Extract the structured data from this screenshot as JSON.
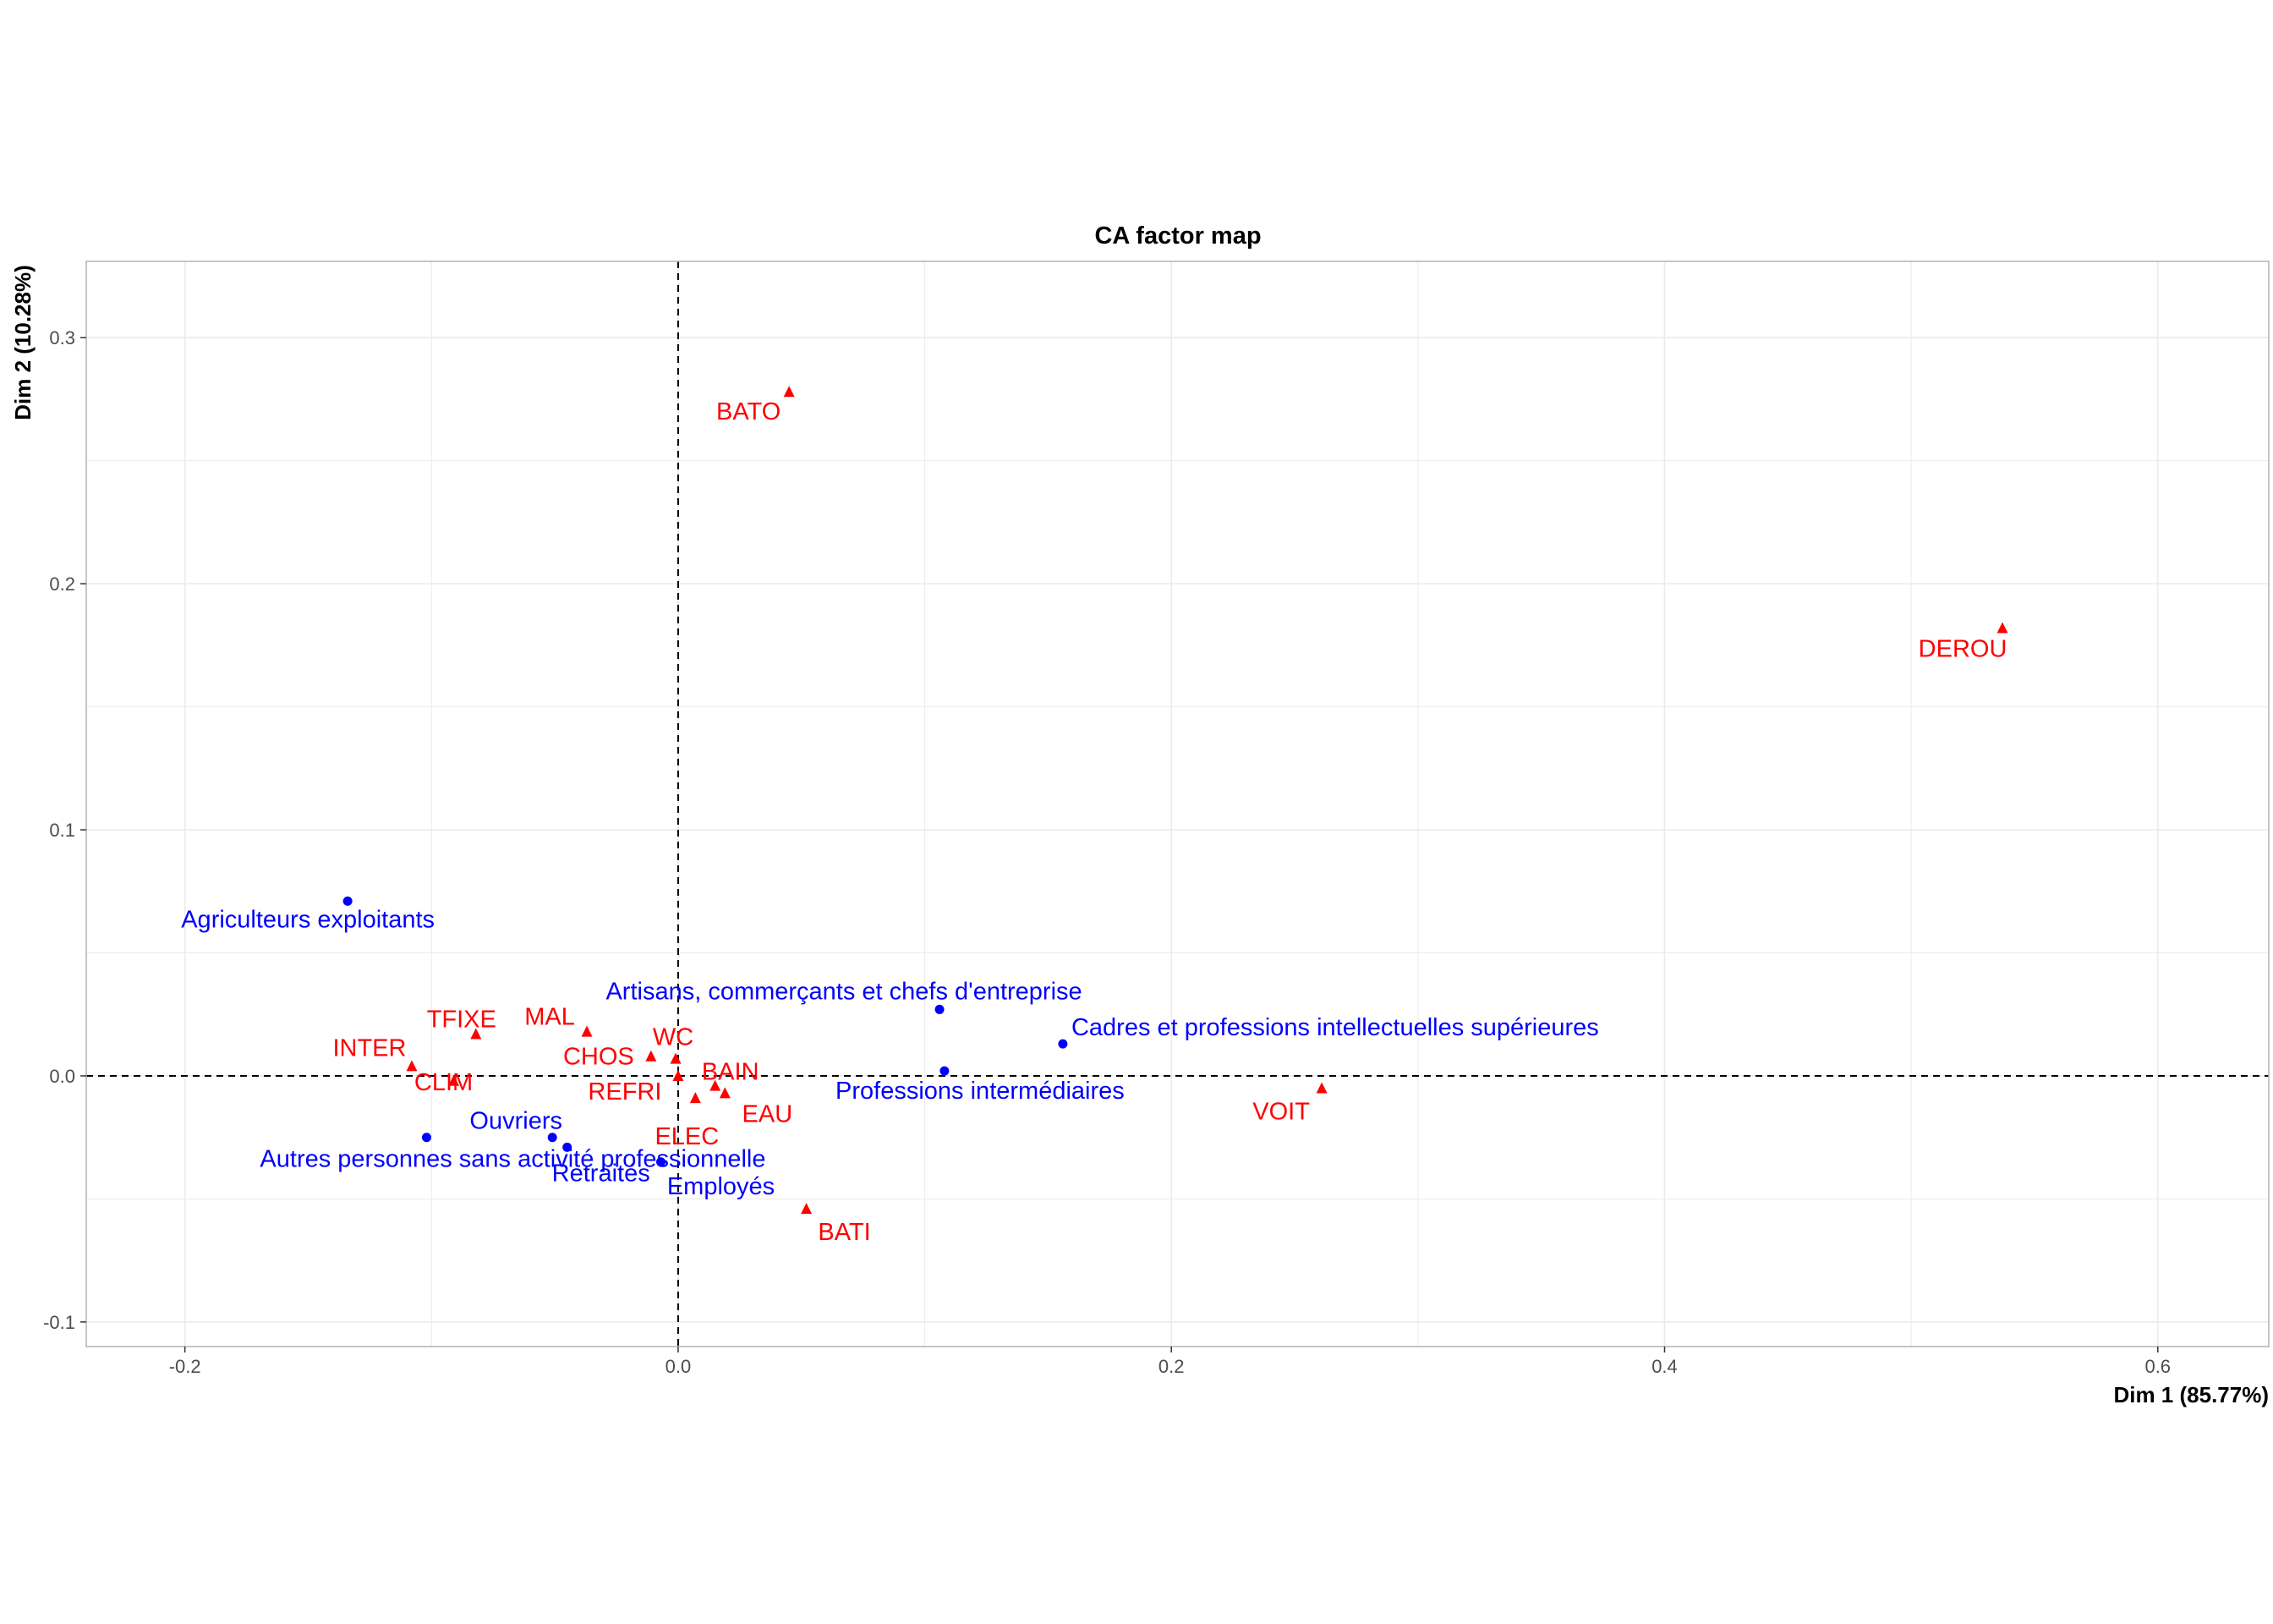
{
  "chart_data": {
    "type": "scatter",
    "title": "CA factor map",
    "xlabel": "Dim 1 (85.77%)",
    "ylabel": "Dim 2 (10.28%)",
    "xlim": [
      -0.24,
      0.645
    ],
    "ylim": [
      -0.11,
      0.331
    ],
    "x_ticks": [
      -0.2,
      0.0,
      0.2,
      0.4,
      0.6
    ],
    "x_tick_labels": [
      "-0.2",
      "0.0",
      "0.2",
      "0.4",
      "0.6"
    ],
    "y_ticks": [
      -0.1,
      0.0,
      0.1,
      0.2,
      0.3
    ],
    "y_tick_labels": [
      "-0.1",
      "0.0",
      "0.1",
      "0.2",
      "0.3"
    ],
    "grid": true,
    "reference_lines": {
      "x": 0,
      "y": 0,
      "style": "dashed"
    },
    "colors": {
      "rows": "#0000ff",
      "columns": "#ff0000",
      "grid": "#ebebeb",
      "frame": "#b3b3b3"
    },
    "series": [
      {
        "marker": "circle",
        "color": "#0000ff",
        "points": [
          {
            "label": "Agriculteurs exploitants",
            "x": -0.134,
            "y": 0.071
          },
          {
            "label": "Artisans, commerçants et chefs d'entreprise",
            "x": 0.106,
            "y": 0.027
          },
          {
            "label": "Cadres et professions intellectuelles supérieures",
            "x": 0.156,
            "y": 0.013
          },
          {
            "label": "Professions intermédiaires",
            "x": 0.108,
            "y": 0.002
          },
          {
            "label": "Ouvriers",
            "x": -0.051,
            "y": -0.025
          },
          {
            "label": "Autres personnes sans activité professionnelle",
            "x": -0.102,
            "y": -0.025
          },
          {
            "label": "Retraités",
            "x": -0.045,
            "y": -0.029
          },
          {
            "label": "Employés",
            "x": -0.007,
            "y": -0.035
          }
        ]
      },
      {
        "marker": "triangle",
        "color": "#ff0000",
        "points": [
          {
            "label": "BATO",
            "x": 0.045,
            "y": 0.278
          },
          {
            "label": "DEROU",
            "x": 0.537,
            "y": 0.182
          },
          {
            "label": "TFIXE",
            "x": -0.082,
            "y": 0.017
          },
          {
            "label": "MAL",
            "x": -0.037,
            "y": 0.018
          },
          {
            "label": "INTER",
            "x": -0.108,
            "y": 0.004
          },
          {
            "label": "CLIM",
            "x": -0.091,
            "y": -0.002
          },
          {
            "label": "CHOS",
            "x": -0.011,
            "y": 0.008
          },
          {
            "label": "WC",
            "x": -0.001,
            "y": 0.007
          },
          {
            "label": "REFRI",
            "x": 0.0,
            "y": 0.0
          },
          {
            "label": "BAIN",
            "x": 0.015,
            "y": -0.004
          },
          {
            "label": "EAU",
            "x": 0.019,
            "y": -0.007
          },
          {
            "label": "ELEC",
            "x": 0.007,
            "y": -0.009
          },
          {
            "label": "VOIT",
            "x": 0.261,
            "y": -0.005
          },
          {
            "label": "BATI",
            "x": 0.052,
            "y": -0.054
          }
        ]
      }
    ]
  }
}
